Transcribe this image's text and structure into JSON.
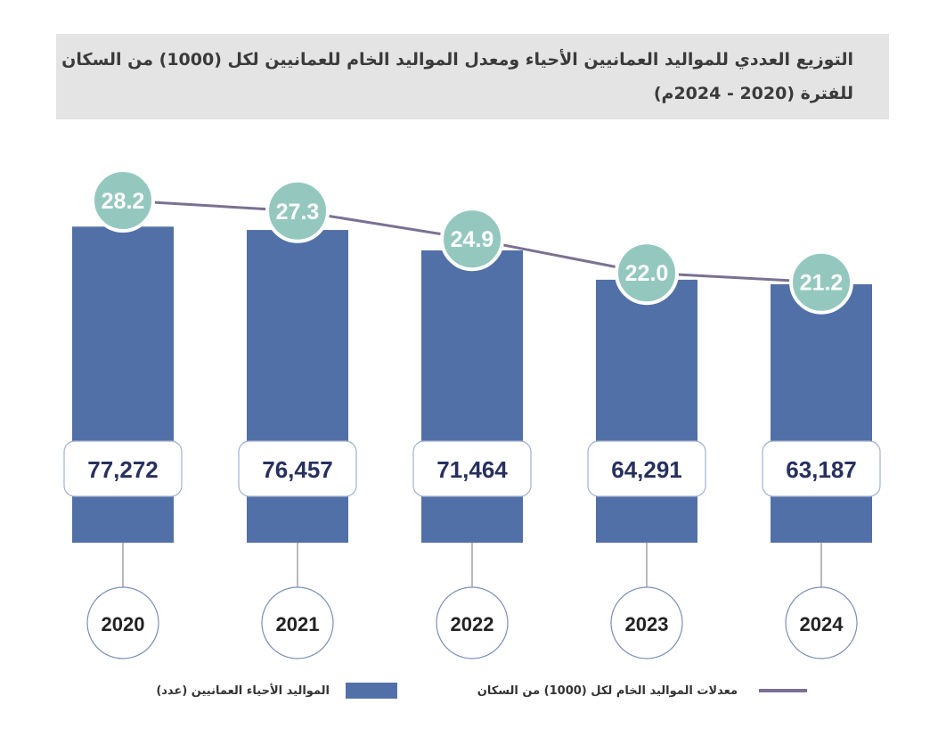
{
  "title": {
    "line1": "التوزيع العددي للمواليد العمانيين الأحياء ومعدل المواليد الخام للعمانيين لكل (1000) من السكان",
    "line2": "للفترة (2020 - 2024م)"
  },
  "colors": {
    "bar": "#5270a8",
    "circle": "#94c8bf",
    "line": "#7a7192",
    "value_text": "#27305f",
    "title_bg": "#e4e4e4"
  },
  "chart_data": {
    "type": "bar",
    "categories": [
      "2020",
      "2021",
      "2022",
      "2023",
      "2024"
    ],
    "series": [
      {
        "name": "المواليد الأحياء العمانيين (عدد)",
        "type": "bar",
        "values": [
          77272,
          76457,
          71464,
          64291,
          63187
        ],
        "labels": [
          "77,272",
          "76,457",
          "71,464",
          "64,291",
          "63,187"
        ]
      },
      {
        "name": "معدلات المواليد الخام لكل (1000) من السكان",
        "type": "line",
        "values": [
          28.2,
          27.3,
          24.9,
          22.0,
          21.2
        ],
        "labels": [
          "28.2",
          "27.3",
          "24.9",
          "22.0",
          "21.2"
        ]
      }
    ],
    "legend_position": "bottom"
  },
  "legend": {
    "bar_label": "المواليد الأحياء العمانيين (عدد)",
    "line_label": "معدلات المواليد الخام لكل (1000) من السكان"
  }
}
